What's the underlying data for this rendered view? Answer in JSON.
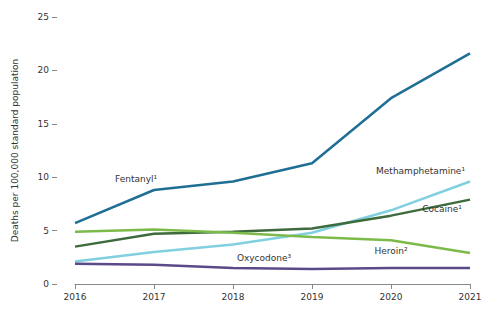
{
  "chart_data": {
    "type": "line",
    "y_label": "Deaths per 100,000 standard population",
    "categories": [
      "2016",
      "2017",
      "2018",
      "2019",
      "2020",
      "2021"
    ],
    "series": [
      {
        "name": "Fentanyl¹",
        "color": "#1f6f95",
        "values": [
          5.7,
          8.8,
          9.6,
          11.3,
          17.4,
          21.6
        ]
      },
      {
        "name": "Methamphetamine¹",
        "color": "#80d0e0",
        "values": [
          2.1,
          3.0,
          3.7,
          4.8,
          6.9,
          9.6
        ]
      },
      {
        "name": "Cocaine¹",
        "color": "#3e6b3c",
        "values": [
          3.5,
          4.7,
          4.9,
          5.2,
          6.4,
          7.9
        ]
      },
      {
        "name": "Heroin²",
        "color": "#7cba4a",
        "values": [
          4.9,
          5.1,
          4.8,
          4.4,
          4.1,
          2.9
        ]
      },
      {
        "name": "Oxycodone³",
        "color": "#5b4a8a",
        "values": [
          1.9,
          1.8,
          1.5,
          1.4,
          1.5,
          1.5
        ]
      }
    ],
    "ylim": [
      0,
      25
    ],
    "yticks": [
      0,
      5,
      10,
      15,
      20,
      25
    ],
    "grid": false
  }
}
